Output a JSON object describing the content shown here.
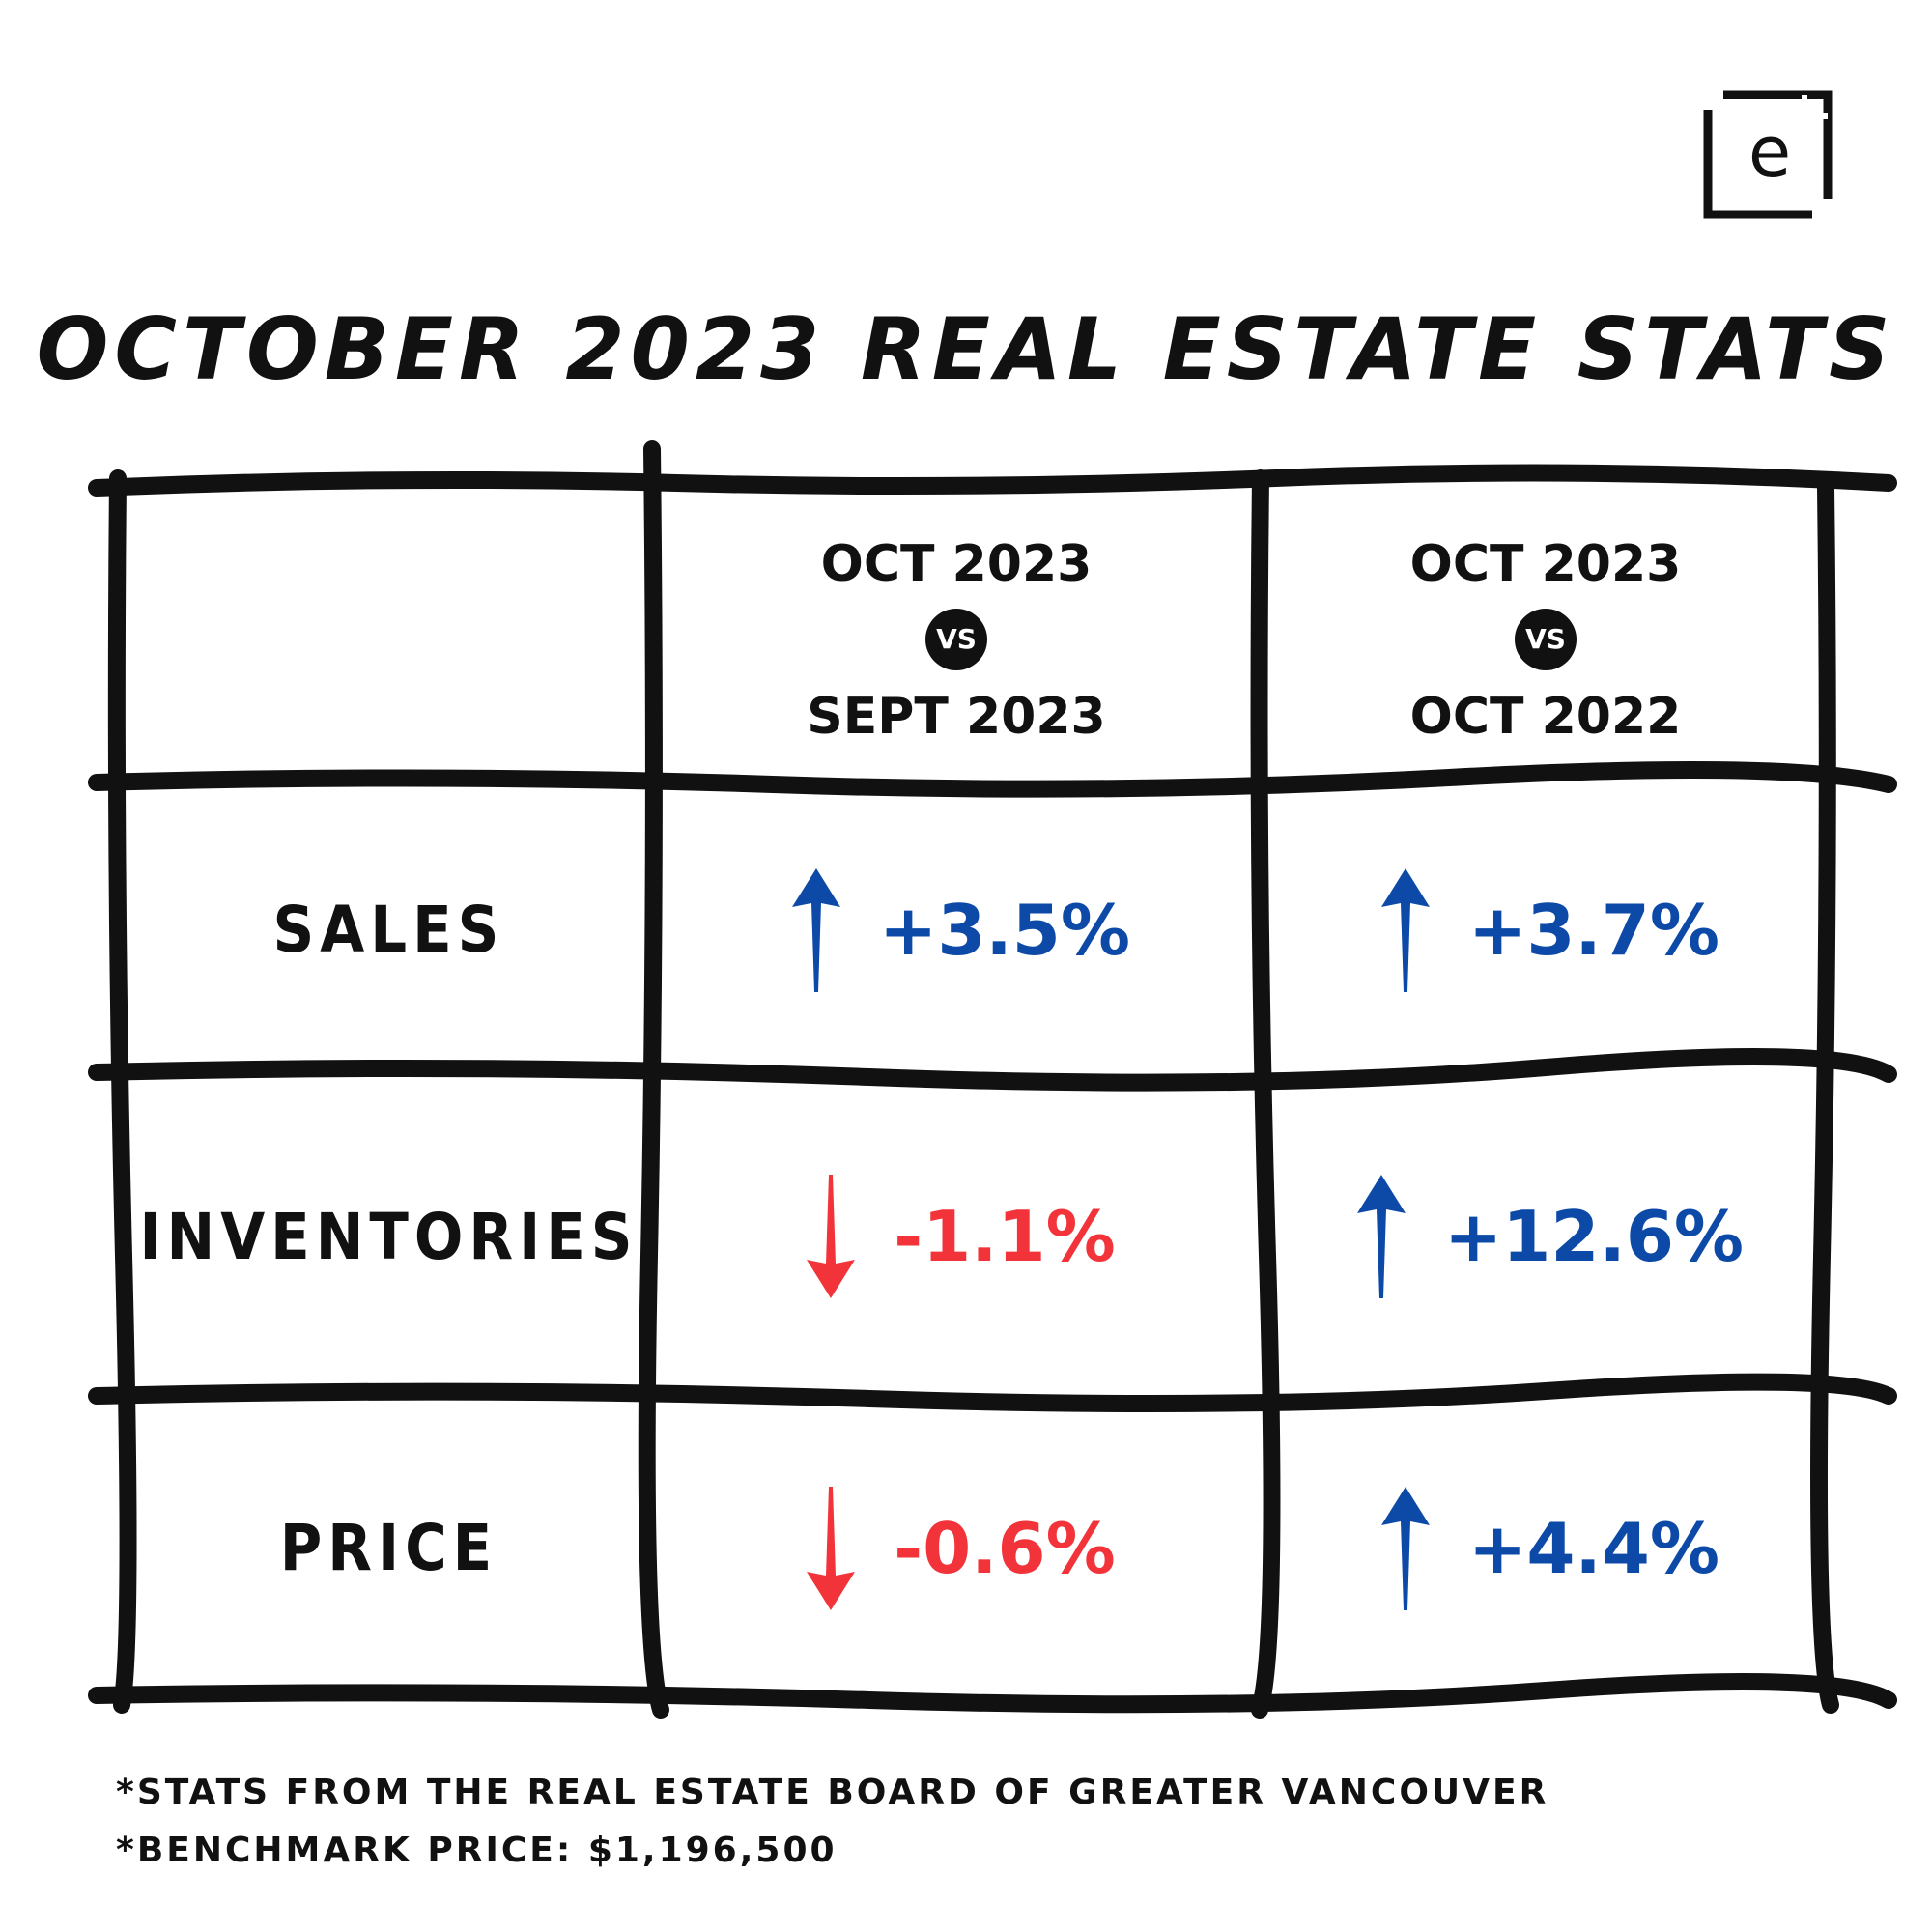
{
  "title": "October 2023 Real Estate Stats",
  "columns": [
    {
      "top": "OCT 2023",
      "vs": "VS",
      "bottom": "SEPT 2023"
    },
    {
      "top": "OCT 2023",
      "vs": "VS",
      "bottom": "OCT 2022"
    }
  ],
  "rows": [
    {
      "label": "SALES",
      "values": [
        {
          "text": "+3.5%",
          "direction": "up"
        },
        {
          "text": "+3.7%",
          "direction": "up"
        }
      ]
    },
    {
      "label": "INVENTORIES",
      "values": [
        {
          "text": "-1.1%",
          "direction": "down"
        },
        {
          "text": "+12.6%",
          "direction": "up"
        }
      ]
    },
    {
      "label": "PRICE",
      "values": [
        {
          "text": "-0.6%",
          "direction": "down"
        },
        {
          "text": "+4.4%",
          "direction": "up"
        }
      ]
    }
  ],
  "footnotes": [
    "*Stats from the Real Estate Board of Greater Vancouver",
    "*Benchmark Price: $1,196,500"
  ],
  "colors": {
    "up": "#0d4aa8",
    "down": "#f2343a",
    "grid": "#111111"
  },
  "logo": {
    "letter": "e",
    "icon": "brand-logo-icon"
  }
}
